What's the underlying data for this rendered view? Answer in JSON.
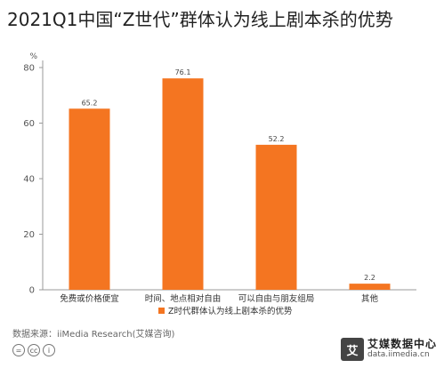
{
  "title": "2021Q1中国“Z世代”群体认为线上剧本杀的优势",
  "footer": {
    "source": "数据来源：iiMedia Research(艾媒咨询)",
    "license_icons": [
      "=",
      "cc",
      "i"
    ],
    "brand_logo": "艾",
    "brand_name": "艾媒数据中心",
    "brand_url": "data.iimedia.cn"
  },
  "colors": {
    "bar": "#F47521",
    "axis": "#999999",
    "text": "#333333"
  },
  "chart_data": {
    "type": "bar",
    "categories": [
      "免费或价格便宜",
      "时间、地点相对自由",
      "可以自由与朋友组局",
      "其他"
    ],
    "series": [
      {
        "name": "Z时代群体认为线上剧本杀的优势",
        "values": [
          65.2,
          76.1,
          52.2,
          2.2
        ]
      }
    ],
    "data_labels": [
      "65.2",
      "76.1",
      "52.2",
      "2.2"
    ],
    "unit": "%",
    "ylim": [
      0,
      80
    ],
    "yticks": [
      0,
      20,
      40,
      60,
      80
    ],
    "ytick_labels": [
      "0",
      "20",
      "40",
      "60",
      "80"
    ],
    "grid": false,
    "legend_position": "bottom"
  }
}
